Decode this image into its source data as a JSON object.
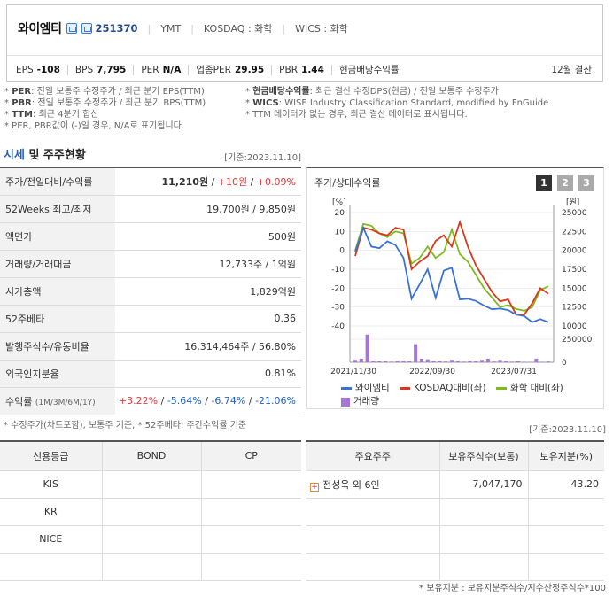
{
  "header": {
    "name": "와이엠티",
    "code": "251370",
    "ticker": "YMT",
    "market": "KOSDAQ : 화학",
    "wics": "WICS : 화학",
    "metrics": [
      {
        "k": "EPS",
        "v": "-108"
      },
      {
        "k": "BPS",
        "v": "7,795"
      },
      {
        "k": "PER",
        "v": "N/A"
      },
      {
        "k": "업종PER",
        "v": "29.95"
      },
      {
        "k": "PBR",
        "v": "1.44"
      },
      {
        "k": "현금배당수익률",
        "v": ""
      }
    ],
    "settle": "12월 결산"
  },
  "notes": {
    "per_k": "PER",
    "per_t": ": 전일 보통주 수정주가 / 최근 분기 EPS(TTM)",
    "div_k": "현금배당수익률",
    "div_t": ": 최근 결산 수정DPS(현금) / 전일 보통주 수정주가",
    "pbr_k": "PBR",
    "pbr_t": ": 전일 보통주 수정주가 / 최근 분기 BPS(TTM)",
    "wics_k": "WICS",
    "wics_t": ": WISE Industry Classification Standard, modified by FnGuide",
    "ttm_k": "TTM",
    "ttm_t": ": 최근 4분기 합산",
    "ttm2": "* TTM 데이터가 없는 경우, 최근 결산 데이터로 표시됩니다.",
    "neg": "* PER, PBR값이 (-)일 경우, N/A로 표기됩니다."
  },
  "section": {
    "title_a": "시세",
    "title_b": " 및 주주현황",
    "date": "[기준:2023.11.10]"
  },
  "price_table": {
    "r0_k": "주가/전일대비/수익률",
    "r0_price": "11,210원",
    "r0_chg": "+10원",
    "r0_pct": "+0.09%",
    "r1_k": "52Weeks 최고/최저",
    "r1_v": "19,700원 / 9,850원",
    "r2_k": "액면가",
    "r2_v": "500원",
    "r3_k": "거래량/거래대금",
    "r3_v": "12,733주 / 1억원",
    "r4_k": "시가총액",
    "r4_v": "1,829억원",
    "r5_k": "52주베타",
    "r5_v": "0.36",
    "r6_k": "발행주식수/유동비율",
    "r6_v": "16,314,464주 / 56.80%",
    "r7_k": "외국인지분율",
    "r7_v": "0.81%",
    "r8_k": "수익률",
    "r8_sub": "(1M/3M/6M/1Y)",
    "r8_a": "+3.22%",
    "r8_b": "-5.64%",
    "r8_c": "-6.74%",
    "r8_d": "-21.06%",
    "note": "* 수정주가(차트포함), 보통주 기준, * 52주베타: 주간수익률 기준"
  },
  "chart_panel": {
    "title": "주가/상대수익률",
    "tabs": [
      "1",
      "2",
      "3"
    ],
    "legend": {
      "s1": "와이엠티",
      "s2": "KOSDAQ대비(좌)",
      "s3": "화학 대비(좌)",
      "s4": "거래량"
    },
    "colors": {
      "s1": "#3a72d6",
      "s2": "#d9381e",
      "s3": "#7cbb1f",
      "s4": "#a676d6"
    }
  },
  "chart_data": {
    "type": "line",
    "x_ticks": [
      "2021/11/30",
      "2022/09/30",
      "2023/07/31"
    ],
    "left_unit": "[%]",
    "left_ticks": [
      20,
      10,
      0,
      -10,
      -20,
      -30,
      -40
    ],
    "right_unit": "[원]",
    "right_ticks": [
      25000,
      22500,
      20000,
      17500,
      15000,
      12500,
      10000
    ],
    "vol_ticks": [
      250000,
      0
    ],
    "series": [
      {
        "name": "와이엠티",
        "axis": "right",
        "values": [
          19800,
          23000,
          20500,
          20300,
          21200,
          20700,
          19000,
          13600,
          15500,
          17500,
          13700,
          17300,
          17700,
          13500,
          13600,
          13300,
          12700,
          12200,
          12300,
          12100,
          11500,
          11300,
          10500,
          10900,
          10500
        ]
      },
      {
        "name": "KOSDAQ대비(좌)",
        "axis": "left",
        "values": [
          -3,
          12,
          11,
          9,
          8,
          12,
          11,
          -10,
          -6,
          -3,
          5,
          8,
          2,
          15,
          2,
          -8,
          -15,
          -22,
          -27,
          -26,
          -34,
          -34,
          -28,
          -20,
          -23
        ]
      },
      {
        "name": "화학 대비(좌)",
        "axis": "left",
        "values": [
          0,
          14,
          13,
          9,
          7,
          10,
          9,
          -7,
          -4,
          2,
          -4,
          -1,
          11,
          -2,
          -6,
          -13,
          -20,
          -25,
          -30,
          -29,
          -31,
          -32,
          -30,
          -21,
          -19
        ]
      },
      {
        "name": "거래량",
        "axis": "vol",
        "values": [
          20000,
          30000,
          230000,
          15000,
          10000,
          8000,
          5000,
          10000,
          15000,
          8000,
          150000,
          30000,
          25000,
          10000,
          10000,
          6000,
          20000,
          12000,
          5000,
          15000,
          10000,
          20000,
          30000,
          6000,
          20000,
          12000,
          5000,
          8000,
          4000,
          3000,
          30000,
          4000,
          6000
        ]
      }
    ]
  },
  "credit_table": {
    "headers": [
      "신용등급",
      "BOND",
      "CP"
    ],
    "rows": [
      "KIS",
      "KR",
      "NICE"
    ]
  },
  "shareholder_table": {
    "date": "[기준:2023.11.10]",
    "headers": [
      "주요주주",
      "보유주식수(보통)",
      "보유지분(%)"
    ],
    "r0_name": "전성욱 외 6인",
    "r0_shares": "7,047,170",
    "r0_pct": "43.20",
    "note": "* 보유지분 : 보유지분주식수/지수산정주식수*100"
  }
}
